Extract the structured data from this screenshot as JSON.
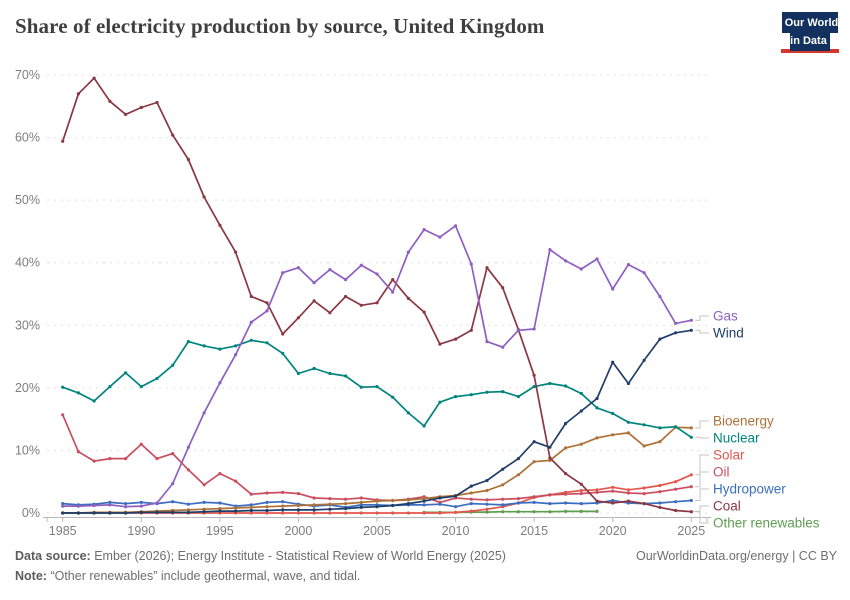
{
  "header": {
    "title": "Share of electricity production by source, United Kingdom",
    "logo_line1": "Our World",
    "logo_line2": "in Data"
  },
  "footer": {
    "source_label": "Data source:",
    "source_text": "Ember (2026); Energy Institute - Statistical Review of World Energy (2025)",
    "note_label": "Note:",
    "note_text": "“Other renewables” include geothermal, wave, and tidal.",
    "link": "OurWorldinData.org/energy | CC BY"
  },
  "colors": {
    "title": "#3f3f3f",
    "tick_text": "#7d7d7d",
    "gridline": "#e0e0e0",
    "axis": "#b8b8b8",
    "connector": "#c4c4c4",
    "logo_bg": "#13315f",
    "logo_strip": "#d4372b"
  },
  "chart_data": {
    "type": "line",
    "title": "Share of electricity production by source, United Kingdom",
    "xlabel": "",
    "ylabel": "",
    "ylim": [
      0,
      70
    ],
    "xlim": [
      1984,
      2026
    ],
    "y_ticks": [
      0,
      10,
      20,
      30,
      40,
      50,
      60,
      70
    ],
    "y_tick_suffix": "%",
    "x_ticks": [
      1985,
      1990,
      1995,
      2000,
      2005,
      2010,
      2015,
      2020,
      2025
    ],
    "grid": "dashed-horizontal",
    "legend_position": "right-of-line-ends",
    "x": [
      1985,
      1986,
      1987,
      1988,
      1989,
      1990,
      1991,
      1992,
      1993,
      1994,
      1995,
      1996,
      1997,
      1998,
      1999,
      2000,
      2001,
      2002,
      2003,
      2004,
      2005,
      2006,
      2007,
      2008,
      2009,
      2010,
      2011,
      2012,
      2013,
      2014,
      2015,
      2016,
      2017,
      2018,
      2019,
      2020,
      2021,
      2022,
      2023,
      2024,
      2025
    ],
    "series": [
      {
        "name": "Other renewables",
        "color": "#5e9c50",
        "values": [
          null,
          null,
          null,
          null,
          null,
          null,
          null,
          null,
          null,
          null,
          null,
          null,
          null,
          null,
          null,
          null,
          null,
          null,
          null,
          null,
          null,
          null,
          null,
          0.1,
          0.1,
          0.1,
          0.15,
          0.15,
          0.2,
          0.2,
          0.2,
          0.2,
          0.25,
          0.25,
          0.25,
          null,
          null,
          null,
          null,
          null,
          null
        ]
      },
      {
        "name": "Solar",
        "color": "#e2584c",
        "values": [
          0,
          0,
          0,
          0,
          0,
          0,
          0,
          0,
          0,
          0,
          0,
          0,
          0,
          0,
          0,
          0,
          0,
          0,
          0,
          0,
          0,
          0,
          0,
          0,
          0,
          0.1,
          0.3,
          0.6,
          1.0,
          1.6,
          2.5,
          2.9,
          3.3,
          3.6,
          3.7,
          4.1,
          3.7,
          4.0,
          4.4,
          5.0,
          6.1
        ]
      },
      {
        "name": "Oil",
        "color": "#cb4e60",
        "values": [
          15.7,
          9.8,
          8.3,
          8.7,
          8.7,
          11.0,
          8.7,
          9.5,
          6.9,
          4.5,
          6.3,
          5.1,
          3.0,
          3.2,
          3.3,
          3.1,
          2.4,
          2.3,
          2.2,
          2.4,
          2.1,
          2.0,
          2.2,
          2.6,
          1.7,
          2.4,
          2.2,
          2.1,
          2.2,
          2.3,
          2.6,
          2.9,
          3.0,
          3.1,
          3.3,
          3.5,
          3.2,
          3.1,
          3.4,
          3.8,
          4.2
        ]
      },
      {
        "name": "Hydropower",
        "color": "#3c6ec0",
        "values": [
          1.5,
          1.3,
          1.4,
          1.7,
          1.5,
          1.7,
          1.5,
          1.8,
          1.4,
          1.7,
          1.6,
          1.1,
          1.3,
          1.7,
          1.8,
          1.4,
          1.1,
          1.3,
          0.9,
          1.3,
          1.3,
          1.2,
          1.3,
          1.3,
          1.4,
          1.0,
          1.5,
          1.4,
          1.3,
          1.6,
          1.7,
          1.5,
          1.6,
          1.5,
          1.6,
          2.0,
          1.6,
          1.5,
          1.6,
          1.8,
          2.0
        ]
      },
      {
        "name": "Bioenergy",
        "color": "#ae7137",
        "values": [
          0.0,
          0.0,
          0.1,
          0.1,
          0.1,
          0.2,
          0.3,
          0.4,
          0.5,
          0.6,
          0.7,
          0.8,
          0.9,
          1.0,
          1.1,
          1.2,
          1.3,
          1.4,
          1.5,
          1.7,
          1.9,
          2.0,
          2.1,
          2.3,
          2.6,
          2.8,
          3.2,
          3.6,
          4.5,
          6.1,
          8.2,
          8.4,
          10.4,
          11.0,
          12.0,
          12.5,
          12.8,
          10.7,
          11.4,
          13.7,
          13.6
        ]
      },
      {
        "name": "Nuclear",
        "color": "#00847e",
        "values": [
          20.1,
          19.2,
          17.9,
          20.2,
          22.4,
          20.2,
          21.5,
          23.6,
          27.4,
          26.7,
          26.2,
          26.7,
          27.6,
          27.2,
          25.5,
          22.3,
          23.1,
          22.3,
          21.9,
          20.1,
          20.2,
          18.5,
          16.0,
          13.9,
          17.7,
          18.6,
          18.9,
          19.3,
          19.4,
          18.6,
          20.2,
          20.7,
          20.3,
          19.1,
          16.8,
          15.9,
          14.5,
          14.1,
          13.6,
          13.8,
          12.1
        ]
      },
      {
        "name": "Coal",
        "color": "#8b3742",
        "values": [
          59.4,
          67.0,
          69.5,
          65.8,
          63.7,
          64.8,
          65.6,
          60.4,
          56.5,
          50.5,
          46.0,
          41.7,
          34.6,
          33.6,
          28.6,
          31.2,
          33.9,
          32.0,
          34.6,
          33.2,
          33.6,
          37.3,
          34.3,
          32.1,
          27.0,
          27.8,
          29.2,
          39.2,
          36.0,
          29.3,
          22.0,
          8.8,
          6.3,
          4.6,
          1.9,
          1.6,
          1.9,
          1.5,
          0.9,
          0.4,
          0.2
        ]
      },
      {
        "name": "Gas",
        "color": "#8f5fc0",
        "values": [
          1.1,
          1.1,
          1.2,
          1.3,
          1.0,
          1.1,
          1.6,
          4.7,
          10.5,
          16.0,
          20.8,
          25.3,
          30.5,
          32.3,
          38.4,
          39.2,
          36.8,
          38.9,
          37.3,
          39.6,
          38.2,
          35.3,
          41.7,
          45.3,
          44.1,
          45.9,
          39.8,
          27.4,
          26.5,
          29.2,
          29.4,
          42.1,
          40.3,
          39.0,
          40.6,
          35.8,
          39.7,
          38.4,
          34.6,
          30.3,
          30.8
        ]
      },
      {
        "name": "Wind",
        "color": "#1f3f69",
        "values": [
          0,
          0,
          0,
          0,
          0,
          0.1,
          0.1,
          0.1,
          0.1,
          0.2,
          0.3,
          0.3,
          0.4,
          0.4,
          0.5,
          0.5,
          0.5,
          0.6,
          0.7,
          0.9,
          1.0,
          1.2,
          1.5,
          1.9,
          2.4,
          2.7,
          4.3,
          5.2,
          7.0,
          8.7,
          11.4,
          10.5,
          14.3,
          16.3,
          18.3,
          24.1,
          20.7,
          24.4,
          27.8,
          28.8,
          29.2
        ]
      }
    ]
  }
}
